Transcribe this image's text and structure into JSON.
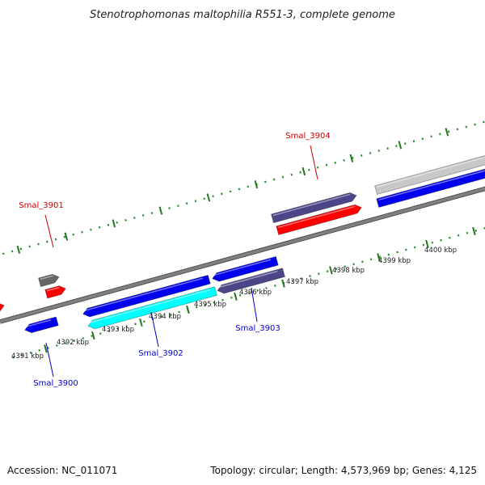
{
  "title": "Stenotrophomonas maltophilia R551-3, complete genome",
  "footer": {
    "accession": "Accession: NC_011071",
    "stats": "Topology: circular; Length: 4,573,969 bp; Genes: 4,125"
  },
  "colors": {
    "backbone": "#808080",
    "tick_major": "#1f7a1f",
    "tick_minor": "#2e8b2e",
    "label_forward": "#cc0000",
    "label_reverse": "#0000cc"
  },
  "kbp_ticks": [
    "4391 kbp",
    "4392 kbp",
    "4393 kbp",
    "4394 kbp",
    "4395 kbp",
    "4396 kbp",
    "4397 kbp",
    "4398 kbp",
    "4399 kbp",
    "4400 kbp"
  ],
  "gene_labels": {
    "forward": [
      "Smal_3901",
      "Smal_3904"
    ],
    "reverse": [
      "Smal_3900",
      "Smal_3902",
      "Smal_3903"
    ]
  },
  "genes": [
    {
      "strand": "forward",
      "row": 1,
      "color": "#ff0000",
      "dir": "right"
    },
    {
      "strand": "forward",
      "row": 2,
      "color": "#c8c8c8",
      "dir": "right"
    },
    {
      "strand": "forward",
      "row": 1,
      "color": "#ff0000",
      "dir": "right"
    },
    {
      "strand": "forward",
      "row": 2,
      "color": "#666666",
      "dir": "right"
    },
    {
      "strand": "forward",
      "row": 1,
      "color": "#ff0000",
      "dir": "right"
    },
    {
      "strand": "forward",
      "row": 2,
      "color": "#4a4688",
      "dir": "right"
    },
    {
      "strand": "forward",
      "row": 1,
      "color": "#0000ee",
      "dir": "right"
    },
    {
      "strand": "forward",
      "row": 2,
      "color": "#c8c8c8",
      "dir": "right"
    },
    {
      "strand": "reverse",
      "row": 1,
      "color": "#0000ee",
      "dir": "left"
    },
    {
      "strand": "reverse",
      "row": 1,
      "color": "#0000ee",
      "dir": "left"
    },
    {
      "strand": "reverse",
      "row": 2,
      "color": "#00ffff",
      "dir": "left"
    },
    {
      "strand": "reverse",
      "row": 1,
      "color": "#0000ee",
      "dir": "left"
    },
    {
      "strand": "reverse",
      "row": 2,
      "color": "#4a4688",
      "dir": "left"
    }
  ]
}
